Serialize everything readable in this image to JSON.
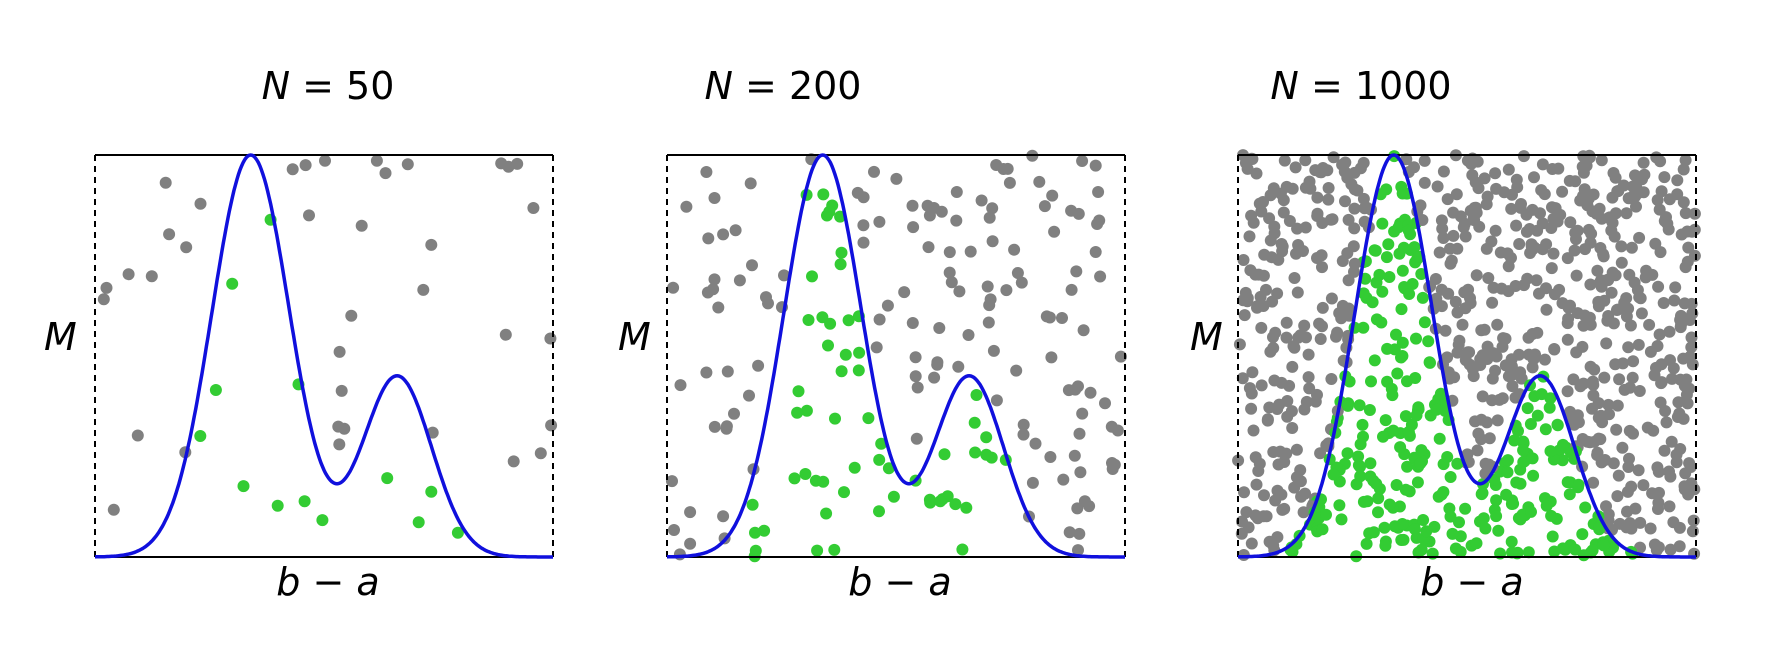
{
  "colors": {
    "curve": "#1010dd",
    "inside": "#33cc33",
    "outside": "#808080",
    "frame": "#000000"
  },
  "chart_data": [
    {
      "type": "scatter",
      "title_var": "N",
      "title_value": "= 50",
      "xlabel": "b − a",
      "ylabel": "M",
      "xlim": [
        0,
        1
      ],
      "ylim": [
        0,
        1
      ],
      "n_points": 50,
      "curve": {
        "name": "",
        "description": "bimodal density (mixture of two Gaussians)",
        "components": [
          {
            "mean": 0.34,
            "sd": 0.085,
            "weight": 1.0
          },
          {
            "mean": 0.66,
            "sd": 0.075,
            "weight": 0.45
          }
        ]
      },
      "series": [
        {
          "name": "",
          "role": "accepted"
        },
        {
          "name": "",
          "role": "rejected"
        }
      ]
    },
    {
      "type": "scatter",
      "title_var": "N",
      "title_value": "= 200",
      "xlabel": "b − a",
      "ylabel": "M",
      "xlim": [
        0,
        1
      ],
      "ylim": [
        0,
        1
      ],
      "n_points": 200,
      "curve": {
        "name": "",
        "description": "bimodal density (mixture of two Gaussians)",
        "components": [
          {
            "mean": 0.34,
            "sd": 0.085,
            "weight": 1.0
          },
          {
            "mean": 0.66,
            "sd": 0.075,
            "weight": 0.45
          }
        ]
      },
      "series": [
        {
          "name": "",
          "role": "accepted"
        },
        {
          "name": "",
          "role": "rejected"
        }
      ]
    },
    {
      "type": "scatter",
      "title_var": "N",
      "title_value": "= 1000",
      "xlabel": "b − a",
      "ylabel": "M",
      "xlim": [
        0,
        1
      ],
      "ylim": [
        0,
        1
      ],
      "n_points": 1000,
      "curve": {
        "name": "",
        "description": "bimodal density (mixture of two Gaussians)",
        "components": [
          {
            "mean": 0.34,
            "sd": 0.085,
            "weight": 1.0
          },
          {
            "mean": 0.66,
            "sd": 0.075,
            "weight": 0.45
          }
        ]
      },
      "series": [
        {
          "name": "",
          "role": "accepted"
        },
        {
          "name": "",
          "role": "rejected"
        }
      ]
    }
  ]
}
